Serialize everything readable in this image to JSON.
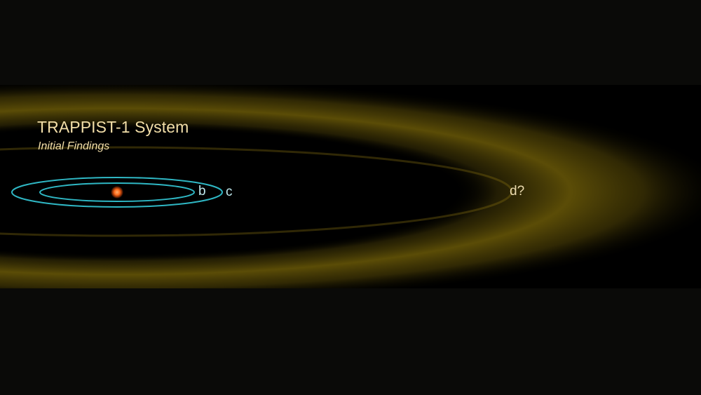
{
  "diagram": {
    "title": "TRAPPIST-1 System",
    "subtitle": "Initial Findings",
    "planets": {
      "b": "b",
      "c": "c",
      "d": "d?"
    },
    "colors": {
      "background": "#0a0a08",
      "band": "#000000",
      "habitable_zone": "#6b5a08",
      "orbit": "#2fb7c4",
      "star": "#ff6a1a",
      "title_text": "#f2dea8"
    }
  }
}
